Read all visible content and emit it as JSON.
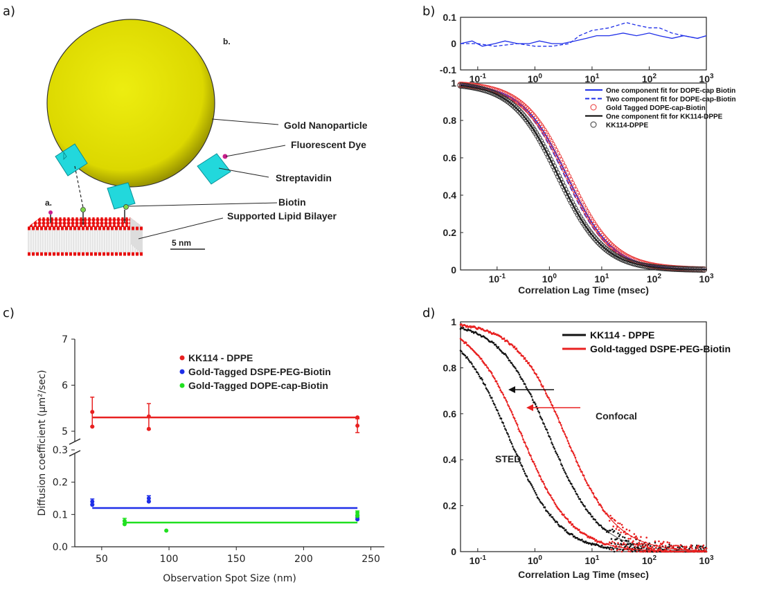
{
  "panel_labels": [
    "a)",
    "b)",
    "c)",
    "d)"
  ],
  "panel_a": {
    "labels": {
      "b": "b.",
      "a": "a.",
      "gold": "Gold Nanoparticle",
      "dye": "Fluorescent Dye",
      "strep": "Streptavidin",
      "biotin": "Biotin",
      "bilayer": "Supported Lipid Bilayer",
      "scale": "5 nm"
    },
    "colors": {
      "gold": "#e5e000",
      "strep": "#22d8dc",
      "lipid_head": "#e81010",
      "dye": "#c81e8c",
      "biotin": "#7fd84a"
    }
  },
  "chart_data": [
    {
      "id": "b-top",
      "type": "line",
      "x_scale": "log",
      "xlim": [
        0.05,
        1000
      ],
      "ylim": [
        -0.1,
        0.1
      ],
      "xticks": [
        0.1,
        1,
        10,
        100,
        1000
      ],
      "xtick_labels": [
        {
          "b": "10",
          "e": "-1"
        },
        {
          "b": "10",
          "e": "0"
        },
        {
          "b": "10",
          "e": "1"
        },
        {
          "b": "10",
          "e": "2"
        },
        {
          "b": "10",
          "e": "3"
        }
      ],
      "yticks": [
        0.1,
        0,
        -0.1
      ],
      "ytick_labels": [
        "0.1",
        "0",
        "-0.1"
      ],
      "series": [
        {
          "style": "solid",
          "color": "#1e2ee8",
          "x": [
            0.05,
            0.08,
            0.12,
            0.2,
            0.3,
            0.5,
            0.8,
            1.2,
            2,
            3,
            5,
            8,
            12,
            20,
            35,
            60,
            100,
            150,
            250,
            400,
            700,
            1000
          ],
          "y": [
            0.0,
            0.01,
            -0.01,
            0.0,
            0.01,
            0.0,
            0.0,
            0.01,
            0.0,
            0.0,
            0.01,
            0.02,
            0.03,
            0.03,
            0.04,
            0.03,
            0.04,
            0.03,
            0.02,
            0.03,
            0.02,
            0.03
          ]
        },
        {
          "style": "dashed",
          "color": "#1e2ee8",
          "x": [
            0.05,
            0.1,
            0.2,
            0.5,
            1,
            2,
            4,
            6,
            10,
            20,
            40,
            60,
            100,
            150,
            250,
            400,
            700,
            1000
          ],
          "y": [
            0.0,
            0.0,
            -0.01,
            0.0,
            -0.01,
            -0.01,
            0.0,
            0.03,
            0.05,
            0.06,
            0.08,
            0.07,
            0.06,
            0.06,
            0.04,
            0.03,
            0.02,
            0.03
          ]
        }
      ]
    },
    {
      "id": "b-main",
      "type": "line",
      "x_scale": "log",
      "xlim": [
        0.02,
        1000
      ],
      "ylim": [
        0,
        1
      ],
      "xlabel": "Correlation Lag Time (msec)",
      "xticks": [
        0.1,
        1,
        10,
        100,
        1000
      ],
      "xtick_labels": [
        {
          "b": "10",
          "e": "-1"
        },
        {
          "b": "10",
          "e": "0"
        },
        {
          "b": "10",
          "e": "1"
        },
        {
          "b": "10",
          "e": "2"
        },
        {
          "b": "10",
          "e": "3"
        }
      ],
      "yticks": [
        1,
        0.8,
        0.6,
        0.4,
        0.2,
        0
      ],
      "ytick_labels": [
        "1",
        "0.8",
        "0.6",
        "0.4",
        "0.2",
        "0"
      ],
      "series": [
        {
          "name": "One component fit for DOPE-cap Biotin",
          "style": "solid",
          "color": "#1e2ee8",
          "tau": 2.2,
          "k": 0.0
        },
        {
          "name": "Two component fit for DOPE-cap-Biotin",
          "style": "dashed",
          "color": "#1e2ee8",
          "tau": 2.0,
          "k": 0.0
        },
        {
          "name": "Gold Tagged DOPE-cap-Biotin",
          "style": "circles",
          "color": "#e83030",
          "tau": 2.3,
          "k": 0.0
        },
        {
          "name": "One component fit for KK114-DPPE",
          "style": "solid",
          "color": "#000000",
          "tau": 1.5,
          "k": 0.0
        },
        {
          "name": "KK114-DPPE",
          "style": "circles",
          "color": "#333333",
          "tau": 1.5,
          "k": 0.0
        }
      ]
    },
    {
      "id": "c",
      "type": "scatter",
      "xlim": [
        30,
        260
      ],
      "xticks": [
        50,
        100,
        150,
        200,
        250
      ],
      "xtick_labels": [
        "50",
        "100",
        "150",
        "200",
        "250"
      ],
      "xlabel": "Observation Spot Size (nm)",
      "ylabel": "Diffusion coefficient (µm²/sec)",
      "ylim_lower": [
        0,
        0.3
      ],
      "ylim_upper": [
        4.7,
        7
      ],
      "yticks_lower": [
        0,
        0.1,
        0.2,
        0.3
      ],
      "ytick_labels_lower": [
        "0.0",
        "0.1",
        "0.2",
        "0.3"
      ],
      "yticks_upper": [
        5,
        6,
        7
      ],
      "ytick_labels_upper": [
        "5",
        "6",
        "7"
      ],
      "series": [
        {
          "name": "KK114 - DPPE",
          "color": "#e82020",
          "points": [
            {
              "x": 43,
              "y": 5.42,
              "err": 0.32
            },
            {
              "x": 43,
              "y": 5.1,
              "err": 0
            },
            {
              "x": 85,
              "y": 5.32,
              "err": 0.28
            },
            {
              "x": 85,
              "y": 5.05,
              "err": 0
            },
            {
              "x": 240,
              "y": 5.12,
              "err": 0.15
            },
            {
              "x": 240,
              "y": 5.3,
              "err": 0
            }
          ],
          "fit": {
            "x": [
              43,
              240
            ],
            "y": 5.3
          }
        },
        {
          "name": "Gold-Tagged DSPE-PEG-Biotin",
          "color": "#1e2ee8",
          "points": [
            {
              "x": 43,
              "y": 0.14,
              "err": 0.008
            },
            {
              "x": 43,
              "y": 0.13,
              "err": 0
            },
            {
              "x": 85,
              "y": 0.15,
              "err": 0.008
            },
            {
              "x": 85,
              "y": 0.14,
              "err": 0
            },
            {
              "x": 240,
              "y": 0.09,
              "err": 0.006
            },
            {
              "x": 240,
              "y": 0.085,
              "err": 0
            }
          ],
          "fit": {
            "x": [
              43,
              240
            ],
            "y": 0.12
          }
        },
        {
          "name": "Gold-Tagged DOPE-cap-Biotin",
          "color": "#20e020",
          "points": [
            {
              "x": 67,
              "y": 0.08,
              "err": 0.008
            },
            {
              "x": 67,
              "y": 0.07,
              "err": 0
            },
            {
              "x": 98,
              "y": 0.05,
              "err": 0
            },
            {
              "x": 240,
              "y": 0.105,
              "err": 0.006
            },
            {
              "x": 240,
              "y": 0.095,
              "err": 0
            }
          ],
          "fit": {
            "x": [
              67,
              240
            ],
            "y": 0.075
          }
        }
      ]
    },
    {
      "id": "d",
      "type": "line",
      "x_scale": "log",
      "xlim": [
        0.05,
        1000
      ],
      "ylim": [
        0,
        1
      ],
      "xlabel": "Correlation Lag Time (msec)",
      "xticks": [
        0.1,
        1,
        10,
        100,
        1000
      ],
      "xtick_labels": [
        {
          "b": "10",
          "e": "-1"
        },
        {
          "b": "10",
          "e": "0"
        },
        {
          "b": "10",
          "e": "1"
        },
        {
          "b": "10",
          "e": "2"
        },
        {
          "b": "10",
          "e": "3"
        }
      ],
      "yticks": [
        1,
        0.8,
        0.6,
        0.4,
        0.2,
        0
      ],
      "ytick_labels": [
        "1",
        "0.8",
        "0.6",
        "0.4",
        "0.2",
        "0"
      ],
      "series": [
        {
          "name": "KK114 - DPPE",
          "color": "#111111",
          "curves": [
            {
              "tau": 0.35,
              "label": "STED"
            },
            {
              "tau": 1.8,
              "label": "Confocal"
            }
          ]
        },
        {
          "name": "Gold-tagged DSPE-PEG-Biotin",
          "color": "#e82020",
          "curves": [
            {
              "tau": 0.6,
              "label": "STED"
            },
            {
              "tau": 3.5,
              "label": "Confocal"
            }
          ]
        }
      ],
      "annotations": {
        "confocal": "Confocal",
        "sted": "STED"
      }
    }
  ]
}
